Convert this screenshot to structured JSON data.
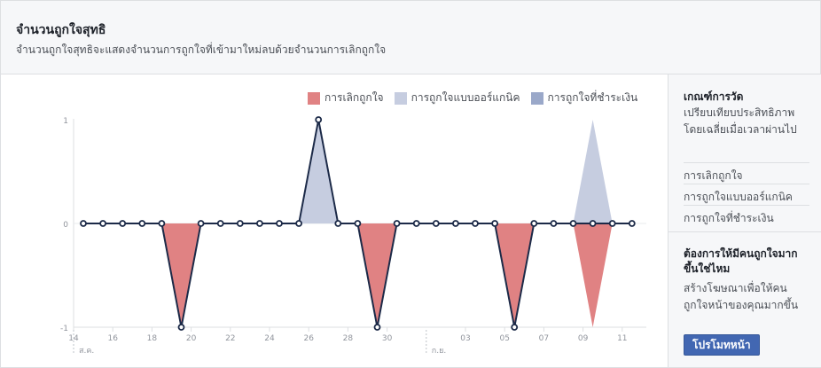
{
  "header": {
    "title": "จำนวนถูกใจสุทธิ",
    "subtitle": "จำนวนถูกใจสุทธิจะแสดงจำนวนการถูกใจที่เข้ามาใหม่ลบด้วยจำนวนการเลิกถูกใจ"
  },
  "colors": {
    "unlikes": "#e08283",
    "organic": "#c6cde0",
    "paid": "#9aa8c9",
    "net_line": "#1c2a48",
    "button": "#4267b2"
  },
  "chart_data": {
    "type": "area",
    "legend": [
      "การเลิกถูกใจ",
      "การถูกใจแบบออร์แกนิค",
      "การถูกใจที่ชำระเงิน"
    ],
    "legend_position": "top-right",
    "y_ticks": [
      "1",
      "0",
      "-1"
    ],
    "ylim": [
      -1,
      1
    ],
    "x_ticks": [
      "14",
      "16",
      "18",
      "20",
      "22",
      "24",
      "26",
      "28",
      "30",
      "03",
      "05",
      "07",
      "09",
      "11"
    ],
    "month_labels": [
      "ส.ค.",
      "ก.ย."
    ],
    "x": [
      "14",
      "15",
      "16",
      "17",
      "18",
      "19",
      "20",
      "21",
      "22",
      "23",
      "24",
      "25",
      "26",
      "27",
      "28",
      "29",
      "30",
      "31",
      "01",
      "02",
      "03",
      "04",
      "05",
      "06",
      "07",
      "08",
      "09",
      "10",
      "11"
    ],
    "series": [
      {
        "name": "การเลิกถูกใจ",
        "values": [
          0,
          0,
          0,
          0,
          0,
          -1,
          0,
          0,
          0,
          0,
          0,
          0,
          0,
          0,
          0,
          -1,
          0,
          0,
          0,
          0,
          0,
          0,
          -1,
          0,
          0,
          0,
          -1,
          0,
          0
        ]
      },
      {
        "name": "การถูกใจแบบออร์แกนิค",
        "values": [
          0,
          0,
          0,
          0,
          0,
          0,
          0,
          0,
          0,
          0,
          0,
          0,
          1,
          0,
          0,
          0,
          0,
          0,
          0,
          0,
          0,
          0,
          0,
          0,
          0,
          0,
          1,
          0,
          0
        ]
      },
      {
        "name": "การถูกใจที่ชำระเงิน",
        "values": [
          0,
          0,
          0,
          0,
          0,
          0,
          0,
          0,
          0,
          0,
          0,
          0,
          0,
          0,
          0,
          0,
          0,
          0,
          0,
          0,
          0,
          0,
          0,
          0,
          0,
          0,
          0,
          0,
          0
        ]
      }
    ],
    "net_values": [
      0,
      0,
      0,
      0,
      0,
      -1,
      0,
      0,
      0,
      0,
      0,
      0,
      1,
      0,
      0,
      -1,
      0,
      0,
      0,
      0,
      0,
      0,
      -1,
      0,
      0,
      0,
      0,
      0,
      0
    ]
  },
  "sidebar": {
    "metric_heading": "เกณฑ์การวัด",
    "metric_text": "เปรียบเทียบประสิทธิภาพโดยเฉลี่ยเมื่อเวลาผ่านไป",
    "links": [
      "การเลิกถูกใจ",
      "การถูกใจแบบออร์แกนิค",
      "การถูกใจที่ชำระเงิน"
    ],
    "promo_heading": "ต้องการให้มีคนถูกใจมากขึ้นใช่ไหม",
    "promo_text": "สร้างโฆษณาเพื่อให้คนถูกใจหน้าของคุณมากขึ้น",
    "promote_button": "โปรโมทหน้า"
  }
}
